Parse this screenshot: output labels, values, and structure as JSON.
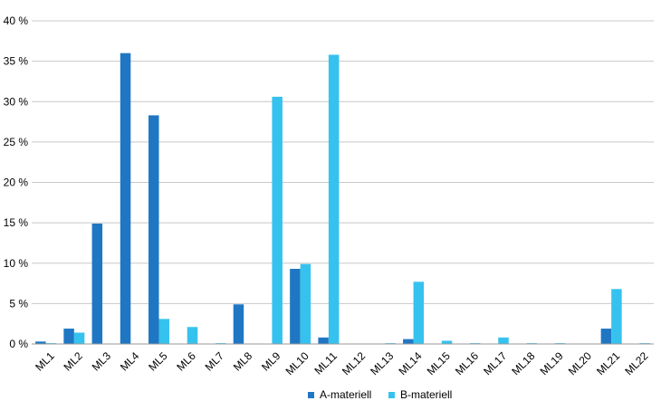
{
  "chart_data": {
    "type": "bar",
    "categories": [
      "ML1",
      "ML2",
      "ML3",
      "ML4",
      "ML5",
      "ML6",
      "ML7",
      "ML8",
      "ML9",
      "ML10",
      "ML11",
      "ML12",
      "ML13",
      "ML14",
      "ML15",
      "ML16",
      "ML17",
      "ML18",
      "ML19",
      "ML20",
      "ML21",
      "ML22"
    ],
    "series": [
      {
        "name": "A-materiell",
        "color": "#1f77c4",
        "values": [
          0.3,
          1.9,
          14.9,
          36.0,
          28.3,
          0,
          0,
          4.9,
          0,
          9.3,
          0.8,
          0,
          0,
          0.6,
          0,
          0,
          0,
          0,
          0,
          0,
          1.9,
          0
        ]
      },
      {
        "name": "B-materiell",
        "color": "#36c2ee",
        "values": [
          0.1,
          1.4,
          0,
          0,
          3.1,
          2.1,
          0.1,
          0,
          30.6,
          9.9,
          35.8,
          0,
          0.1,
          7.7,
          0.4,
          0.1,
          0.8,
          0.1,
          0.1,
          0,
          6.8,
          0.1
        ]
      }
    ],
    "y_ticks": [
      "0 %",
      "5 %",
      "10 %",
      "15 %",
      "20 %",
      "25 %",
      "30 %",
      "35 %",
      "40 %"
    ],
    "ylim": [
      0,
      40
    ],
    "grid": true,
    "legend_position": "bottom-center",
    "title": "",
    "xlabel": "",
    "ylabel": ""
  }
}
